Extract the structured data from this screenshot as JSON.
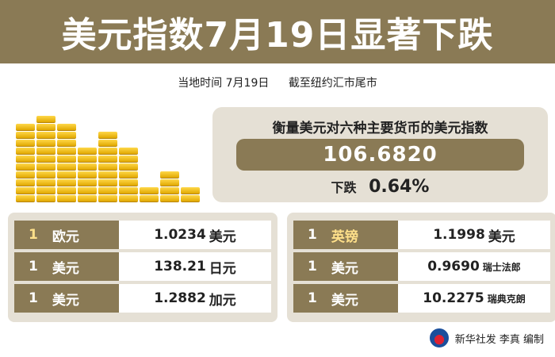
{
  "title": "美元指数7月19日显著下跌",
  "subtitle": {
    "date": "当地时间 7月19日",
    "note": "截至纽约汇市尾市"
  },
  "index_panel": {
    "label": "衡量美元对六种主要货币的美元指数",
    "value": "106.6820",
    "change_label": "下跌",
    "change_value": "0.64%"
  },
  "rates_left": [
    {
      "qty": "1",
      "base": "欧元",
      "value": "1.0234",
      "quote": "美元"
    },
    {
      "qty": "1",
      "base": "美元",
      "value": "138.21",
      "quote": "日元"
    },
    {
      "qty": "1",
      "base": "美元",
      "value": "1.2882",
      "quote": "加元"
    }
  ],
  "rates_right": [
    {
      "qty": "1",
      "base": "英镑",
      "value": "1.1998",
      "quote": "美元"
    },
    {
      "qty": "1",
      "base": "美元",
      "value": "0.9690",
      "quote": "瑞士法郎"
    },
    {
      "qty": "1",
      "base": "美元",
      "value": "10.2275",
      "quote": "瑞典克朗"
    }
  ],
  "footer": {
    "credit": "新华社发 李真 编制"
  },
  "colors": {
    "brand": "#8a7a55",
    "panel": "#e5e0d5",
    "coin": "#f5c400"
  }
}
